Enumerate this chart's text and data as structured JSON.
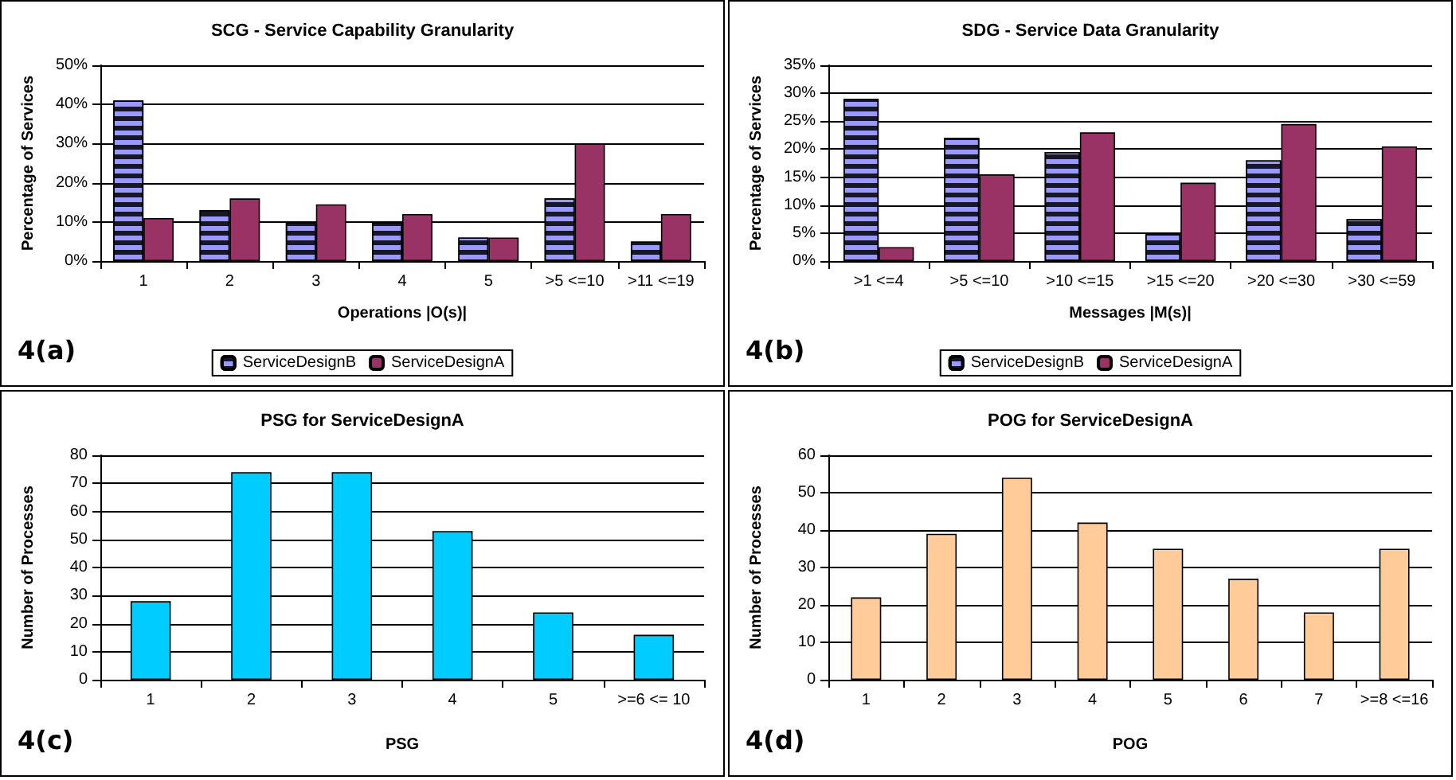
{
  "chart_data": [
    {
      "type": "bar",
      "title": "SCG - Service Capability Granularity",
      "xlabel": "Operations |O(s)|",
      "ylabel": "Percentage of Services",
      "categories": [
        "1",
        "2",
        "3",
        "4",
        "5",
        ">5 <=10",
        ">11 <=19"
      ],
      "series": [
        {
          "name": "ServiceDesignB",
          "color": "#9999ff",
          "values": [
            41,
            13,
            10,
            10,
            6,
            16,
            5
          ]
        },
        {
          "name": "ServiceDesignA",
          "color": "#993366",
          "values": [
            11,
            16,
            14.5,
            12,
            6,
            30,
            12
          ]
        }
      ],
      "ylim": [
        0,
        50
      ],
      "yticks": [
        {
          "value": 0,
          "label": "0%"
        },
        {
          "value": 10,
          "label": "10%"
        },
        {
          "value": 20,
          "label": "20%"
        },
        {
          "value": 30,
          "label": "30%"
        },
        {
          "value": 40,
          "label": "40%"
        },
        {
          "value": 50,
          "label": "50%"
        }
      ],
      "grid": "y",
      "legend": "bottom",
      "annotations": [
        "4(a)"
      ]
    },
    {
      "type": "bar",
      "title": "SDG - Service Data Granularity",
      "xlabel": "Messages |M(s)|",
      "ylabel": "Percentage of Services",
      "categories": [
        ">1 <=4",
        ">5 <=10",
        ">10 <=15",
        ">15 <=20",
        ">20 <=30",
        ">30 <=59"
      ],
      "series": [
        {
          "name": "ServiceDesignB",
          "color": "#9999ff",
          "values": [
            29,
            22,
            19.5,
            5,
            18,
            7.5
          ]
        },
        {
          "name": "ServiceDesignA",
          "color": "#993366",
          "values": [
            2.5,
            15.5,
            23,
            14,
            24.5,
            20.5
          ]
        }
      ],
      "ylim": [
        0,
        35
      ],
      "yticks": [
        {
          "value": 0,
          "label": "0%"
        },
        {
          "value": 5,
          "label": "5%"
        },
        {
          "value": 10,
          "label": "10%"
        },
        {
          "value": 15,
          "label": "15%"
        },
        {
          "value": 20,
          "label": "20%"
        },
        {
          "value": 25,
          "label": "25%"
        },
        {
          "value": 30,
          "label": "30%"
        },
        {
          "value": 35,
          "label": "35%"
        }
      ],
      "grid": "y",
      "legend": "bottom",
      "annotations": [
        "4(b)"
      ]
    },
    {
      "type": "bar",
      "title": "PSG for ServiceDesignA",
      "xlabel": "PSG",
      "ylabel": "Number of Processes",
      "categories": [
        "1",
        "2",
        "3",
        "4",
        "5",
        ">=6 <= 10"
      ],
      "series": [
        {
          "color": "#00ccff",
          "values": [
            28,
            74,
            74,
            53,
            24,
            16
          ]
        }
      ],
      "ylim": [
        0,
        80
      ],
      "yticks": [
        0,
        10,
        20,
        30,
        40,
        50,
        60,
        70,
        80
      ],
      "grid": "y",
      "annotations": [
        "4(c)"
      ]
    },
    {
      "type": "bar",
      "title": "POG for ServiceDesignA",
      "xlabel": "POG",
      "ylabel": "Number of Processes",
      "categories": [
        "1",
        "2",
        "3",
        "4",
        "5",
        "6",
        "7",
        ">=8 <=16"
      ],
      "series": [
        {
          "color": "#ffcc99",
          "values": [
            22,
            39,
            54,
            42,
            35,
            27,
            18,
            35
          ]
        }
      ],
      "ylim": [
        0,
        60
      ],
      "yticks": [
        0,
        10,
        20,
        30,
        40,
        50,
        60
      ],
      "grid": "y",
      "annotations": [
        "4(d)"
      ]
    }
  ]
}
